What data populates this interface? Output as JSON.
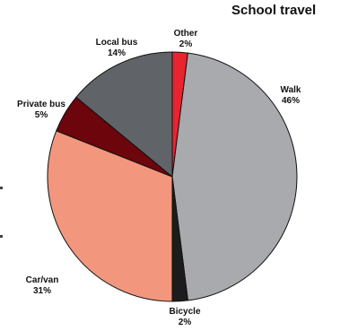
{
  "chart_data": {
    "type": "pie",
    "title": "School travel",
    "unit": "%",
    "slices": [
      {
        "label": "Other",
        "value": 2,
        "color": "#e8242e"
      },
      {
        "label": "Walk",
        "value": 46,
        "color": "#a9aaae"
      },
      {
        "label": "Bicycle",
        "value": 2,
        "color": "#1c1c1c"
      },
      {
        "label": "Car/van",
        "value": 31,
        "color": "#f2967d"
      },
      {
        "label": "Private bus",
        "value": 5,
        "color": "#6d050c"
      },
      {
        "label": "Local bus",
        "value": 14,
        "color": "#606468"
      }
    ]
  }
}
